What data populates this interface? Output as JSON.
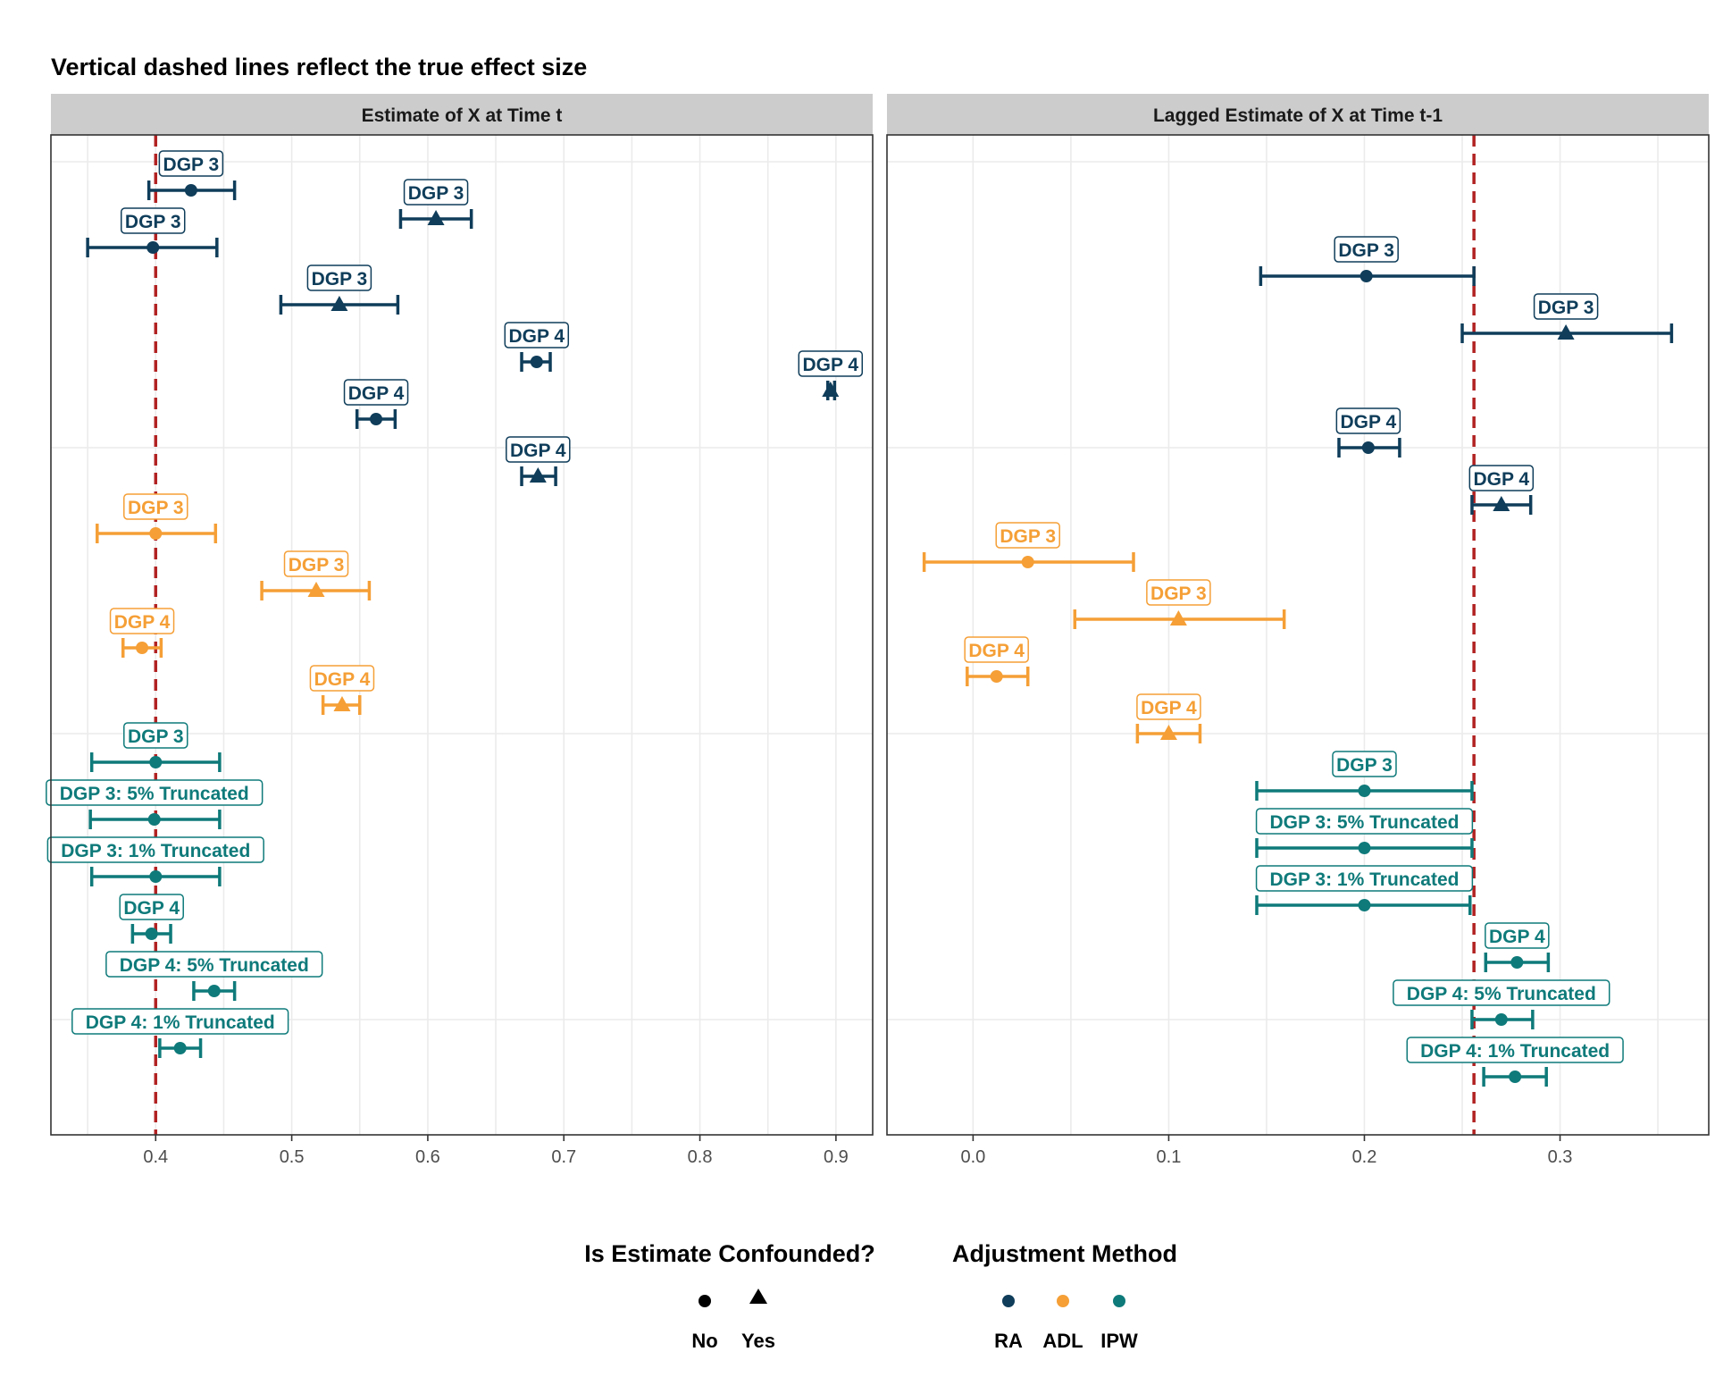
{
  "title": "Vertical dashed lines reflect the true effect size",
  "colors": {
    "RA": "#0f3d5a",
    "ADL": "#f59f36",
    "IPW": "#0f7a7a",
    "true_line": "#b22222",
    "strip_bg": "#cccccc",
    "grid": "#ebebeb"
  },
  "legend": {
    "confounded": {
      "title": "Is Estimate Confounded?",
      "items": [
        {
          "label": "No",
          "shape": "circle"
        },
        {
          "label": "Yes",
          "shape": "triangle"
        }
      ]
    },
    "method": {
      "title": "Adjustment Method",
      "items": [
        {
          "label": "RA",
          "color": "#0f3d5a"
        },
        {
          "label": "ADL",
          "color": "#f59f36"
        },
        {
          "label": "IPW",
          "color": "#0f7a7a"
        }
      ]
    }
  },
  "chart_data": [
    {
      "type": "scatter",
      "panel_title": "Estimate of X at Time t",
      "true_effect": 0.4,
      "xlim": [
        0.323,
        0.927
      ],
      "x_ticks": [
        0.4,
        0.5,
        0.6,
        0.7,
        0.8,
        0.9
      ],
      "x_tick_labels": [
        "0.4",
        "0.5",
        "0.6",
        "0.7",
        "0.8",
        "0.9"
      ],
      "grid": true,
      "points": [
        {
          "label": "DGP 3",
          "method": "RA",
          "confounded": false,
          "est": 0.426,
          "lo": 0.395,
          "hi": 0.458
        },
        {
          "label": "DGP 3",
          "method": "RA",
          "confounded": true,
          "est": 0.606,
          "lo": 0.58,
          "hi": 0.632
        },
        {
          "label": "DGP 3",
          "method": "RA",
          "confounded": false,
          "est": 0.398,
          "lo": 0.35,
          "hi": 0.445
        },
        {
          "label": "DGP 3",
          "method": "RA",
          "confounded": true,
          "est": 0.535,
          "lo": 0.492,
          "hi": 0.578
        },
        {
          "label": "DGP 4",
          "method": "RA",
          "confounded": false,
          "est": 0.68,
          "lo": 0.669,
          "hi": 0.69
        },
        {
          "label": "DGP 4",
          "method": "RA",
          "confounded": true,
          "est": 0.896,
          "lo": 0.894,
          "hi": 0.899
        },
        {
          "label": "DGP 4",
          "method": "RA",
          "confounded": false,
          "est": 0.562,
          "lo": 0.548,
          "hi": 0.576
        },
        {
          "label": "DGP 4",
          "method": "RA",
          "confounded": true,
          "est": 0.681,
          "lo": 0.669,
          "hi": 0.694
        },
        {
          "label": "DGP 3",
          "method": "ADL",
          "confounded": false,
          "est": 0.4,
          "lo": 0.357,
          "hi": 0.444
        },
        {
          "label": "DGP 3",
          "method": "ADL",
          "confounded": true,
          "est": 0.518,
          "lo": 0.478,
          "hi": 0.557
        },
        {
          "label": "DGP 4",
          "method": "ADL",
          "confounded": false,
          "est": 0.39,
          "lo": 0.376,
          "hi": 0.404
        },
        {
          "label": "DGP 4",
          "method": "ADL",
          "confounded": true,
          "est": 0.537,
          "lo": 0.523,
          "hi": 0.55
        },
        {
          "label": "DGP 3",
          "method": "IPW",
          "confounded": false,
          "est": 0.4,
          "lo": 0.353,
          "hi": 0.447
        },
        {
          "label": "DGP 3: 5% Truncated",
          "method": "IPW",
          "confounded": false,
          "est": 0.399,
          "lo": 0.352,
          "hi": 0.447
        },
        {
          "label": "DGP 3: 1% Truncated",
          "method": "IPW",
          "confounded": false,
          "est": 0.4,
          "lo": 0.353,
          "hi": 0.447
        },
        {
          "label": "DGP 4",
          "method": "IPW",
          "confounded": false,
          "est": 0.397,
          "lo": 0.383,
          "hi": 0.411
        },
        {
          "label": "DGP 4: 5% Truncated",
          "method": "IPW",
          "confounded": false,
          "est": 0.443,
          "lo": 0.428,
          "hi": 0.458
        },
        {
          "label": "DGP 4: 1% Truncated",
          "method": "IPW",
          "confounded": false,
          "est": 0.418,
          "lo": 0.403,
          "hi": 0.433
        }
      ]
    },
    {
      "type": "scatter",
      "panel_title": "Lagged Estimate of X at Time t-1",
      "true_effect": 0.256,
      "xlim": [
        -0.044,
        0.376
      ],
      "x_ticks": [
        0.0,
        0.1,
        0.2,
        0.3
      ],
      "x_tick_labels": [
        "0.0",
        "0.1",
        "0.2",
        "0.3"
      ],
      "grid": true,
      "points": [
        {
          "label": "DGP 3",
          "method": "RA",
          "confounded": false,
          "est": 0.201,
          "lo": 0.147,
          "hi": 0.256
        },
        {
          "label": "DGP 3",
          "method": "RA",
          "confounded": true,
          "est": 0.303,
          "lo": 0.25,
          "hi": 0.357
        },
        {
          "label": "DGP 4",
          "method": "RA",
          "confounded": false,
          "est": 0.202,
          "lo": 0.187,
          "hi": 0.218
        },
        {
          "label": "DGP 4",
          "method": "RA",
          "confounded": true,
          "est": 0.27,
          "lo": 0.255,
          "hi": 0.285
        },
        {
          "label": "DGP 3",
          "method": "ADL",
          "confounded": false,
          "est": 0.028,
          "lo": -0.025,
          "hi": 0.082
        },
        {
          "label": "DGP 3",
          "method": "ADL",
          "confounded": true,
          "est": 0.105,
          "lo": 0.052,
          "hi": 0.159
        },
        {
          "label": "DGP 4",
          "method": "ADL",
          "confounded": false,
          "est": 0.012,
          "lo": -0.003,
          "hi": 0.028
        },
        {
          "label": "DGP 4",
          "method": "ADL",
          "confounded": true,
          "est": 0.1,
          "lo": 0.084,
          "hi": 0.116
        },
        {
          "label": "DGP 3",
          "method": "IPW",
          "confounded": false,
          "est": 0.2,
          "lo": 0.145,
          "hi": 0.255
        },
        {
          "label": "DGP 3: 5% Truncated",
          "method": "IPW",
          "confounded": false,
          "est": 0.2,
          "lo": 0.145,
          "hi": 0.255
        },
        {
          "label": "DGP 3: 1% Truncated",
          "method": "IPW",
          "confounded": false,
          "est": 0.2,
          "lo": 0.145,
          "hi": 0.254
        },
        {
          "label": "DGP 4",
          "method": "IPW",
          "confounded": false,
          "est": 0.278,
          "lo": 0.262,
          "hi": 0.294
        },
        {
          "label": "DGP 4: 5% Truncated",
          "method": "IPW",
          "confounded": false,
          "est": 0.27,
          "lo": 0.255,
          "hi": 0.286
        },
        {
          "label": "DGP 4: 1% Truncated",
          "method": "IPW",
          "confounded": false,
          "est": 0.277,
          "lo": 0.261,
          "hi": 0.293
        }
      ]
    }
  ]
}
